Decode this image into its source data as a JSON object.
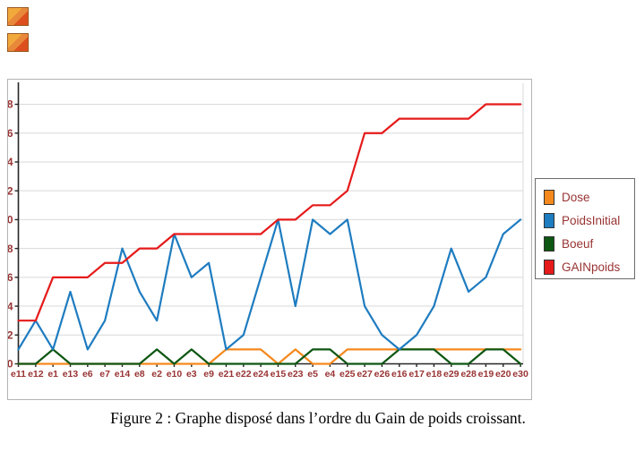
{
  "caption": "Figure 2 : Graphe disposé dans l’ordre du Gain de poids croissant.",
  "icons": {
    "top_left_placeholders": [
      "image-placeholder-icon",
      "image-placeholder-icon"
    ]
  },
  "chart_data": {
    "type": "line",
    "title": "",
    "xlabel": "",
    "ylabel": "",
    "categories": [
      "e11",
      "e12",
      "e1",
      "e13",
      "e6",
      "e7",
      "e14",
      "e8",
      "e2",
      "e10",
      "e3",
      "e9",
      "e21",
      "e22",
      "e24",
      "e15",
      "e23",
      "e5",
      "e4",
      "e25",
      "e27",
      "e26",
      "e16",
      "e17",
      "e18",
      "e29",
      "e28",
      "e19",
      "e20",
      "e30"
    ],
    "series": [
      {
        "name": "Dose",
        "color": "#F5891D",
        "values": [
          0,
          0,
          0,
          0,
          0,
          0,
          0,
          0,
          0,
          0,
          0,
          0,
          1,
          1,
          1,
          0,
          1,
          0,
          0,
          1,
          1,
          1,
          1,
          1,
          1,
          1,
          1,
          1,
          1,
          1
        ]
      },
      {
        "name": "PoidsInitial",
        "color": "#1E7CC0",
        "values": [
          1,
          3,
          1,
          5,
          1,
          3,
          8,
          5,
          3,
          9,
          6,
          7,
          1,
          2,
          6,
          10,
          4,
          10,
          9,
          10,
          4,
          2,
          1,
          2,
          4,
          8,
          5,
          6,
          9,
          10
        ]
      },
      {
        "name": "Boeuf",
        "color": "#0E5713",
        "values": [
          0,
          0,
          1,
          0,
          0,
          0,
          0,
          0,
          1,
          0,
          1,
          0,
          0,
          0,
          0,
          0,
          0,
          1,
          1,
          0,
          0,
          0,
          1,
          1,
          1,
          0,
          0,
          1,
          1,
          0
        ]
      },
      {
        "name": "GAINpoids",
        "color": "#E51A1A",
        "values": [
          3,
          3,
          6,
          6,
          6,
          7,
          7,
          8,
          8,
          9,
          9,
          9,
          9,
          9,
          9,
          10,
          10,
          11,
          11,
          12,
          16,
          16,
          17,
          17,
          17,
          17,
          17,
          18,
          18,
          18
        ]
      }
    ],
    "yticks": [
      0,
      2,
      4,
      6,
      8,
      10,
      12,
      14,
      16,
      18
    ],
    "ylim": [
      0,
      19.5
    ],
    "grid": true,
    "legend_position": "right",
    "colors": {
      "grid": "#D9D9D9",
      "axis": "#262626",
      "tick_label": "#993333",
      "frame_border": "#B3B3B3",
      "legend_border": "#6B6B6B"
    }
  }
}
